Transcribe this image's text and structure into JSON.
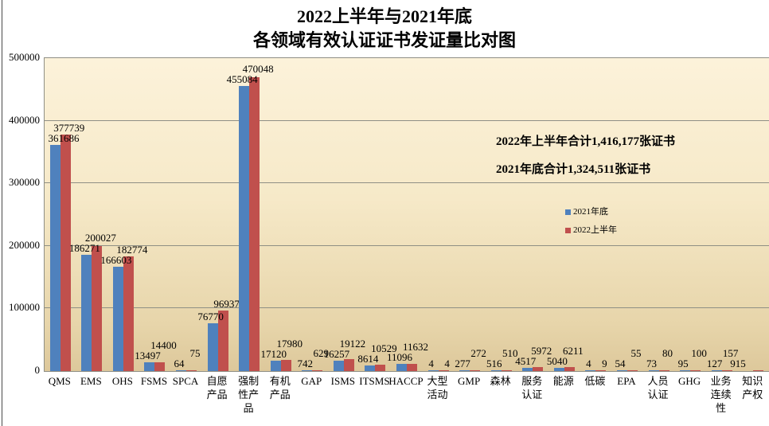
{
  "title": {
    "line1": "2022上半年与2021年底",
    "line2": "各领域有效认证证书发证量比对图"
  },
  "annotations": {
    "total_2022": "2022年上半年合计1,416,177张证书",
    "total_2021": "2021年底合计1,324,511张证书"
  },
  "legend": [
    {
      "label": "2021年底",
      "color": "#4f81bd"
    },
    {
      "label": "2022上半年",
      "color": "#c0504d"
    }
  ],
  "colors": {
    "series_2021": "#4f81bd",
    "series_2022": "#c0504d",
    "gridline": "#8f8f85",
    "plot_bg_top": "#fcf2da",
    "plot_bg_bottom": "#ddc89b"
  },
  "chart_data": {
    "type": "bar",
    "title": "2022上半年与2021年底 各领域有效认证证书发证量比对图",
    "categories": [
      "QMS",
      "EMS",
      "OHS",
      "FSMS",
      "SPCA",
      "自愿产品",
      "强制性产品",
      "有机产品",
      "GAP",
      "ISMS",
      "ITSMS",
      "HACCP",
      "大型活动",
      "GMP",
      "森林",
      "服务认证",
      "能源",
      "低碳",
      "EPA",
      "人员认证",
      "GHG",
      "业务连续性",
      "知识产权"
    ],
    "category_label_lines": [
      [
        "QMS"
      ],
      [
        "EMS"
      ],
      [
        "OHS"
      ],
      [
        "FSMS"
      ],
      [
        "SPCA"
      ],
      [
        "自愿",
        "产品"
      ],
      [
        "强制",
        "性产",
        "品"
      ],
      [
        "有机",
        "产品"
      ],
      [
        "GAP"
      ],
      [
        "ISMS"
      ],
      [
        "ITSMS"
      ],
      [
        "HACCP"
      ],
      [
        "大型",
        "活动"
      ],
      [
        "GMP"
      ],
      [
        "森林"
      ],
      [
        "服务",
        "认证"
      ],
      [
        "能源"
      ],
      [
        "低碳"
      ],
      [
        "EPA"
      ],
      [
        "人员",
        "认证"
      ],
      [
        "GHG"
      ],
      [
        "业务",
        "连续",
        "性"
      ],
      [
        "知识",
        "产权"
      ]
    ],
    "series": [
      {
        "name": "2021年底",
        "values": [
          361686,
          186271,
          166603,
          13497,
          64,
          76770,
          455084,
          17120,
          742,
          16257,
          8614,
          11096,
          4,
          277,
          516,
          4517,
          5040,
          4,
          54,
          73,
          95,
          127,
          null
        ]
      },
      {
        "name": "2022上半年",
        "values": [
          377739,
          200027,
          182774,
          14400,
          75,
          96937,
          470048,
          17980,
          629,
          19122,
          10529,
          11632,
          4,
          272,
          510,
          5972,
          6211,
          9,
          55,
          80,
          100,
          157,
          915
        ]
      }
    ],
    "ylim": [
      0,
      500000
    ],
    "ytick_interval": 100000,
    "ytick_labels": [
      "0",
      "100000",
      "200000",
      "300000",
      "400000",
      "500000"
    ],
    "grid": true,
    "legend_position": "inside-right",
    "data_labels": true,
    "inline_label_category_indexes": [
      12,
      17
    ]
  }
}
